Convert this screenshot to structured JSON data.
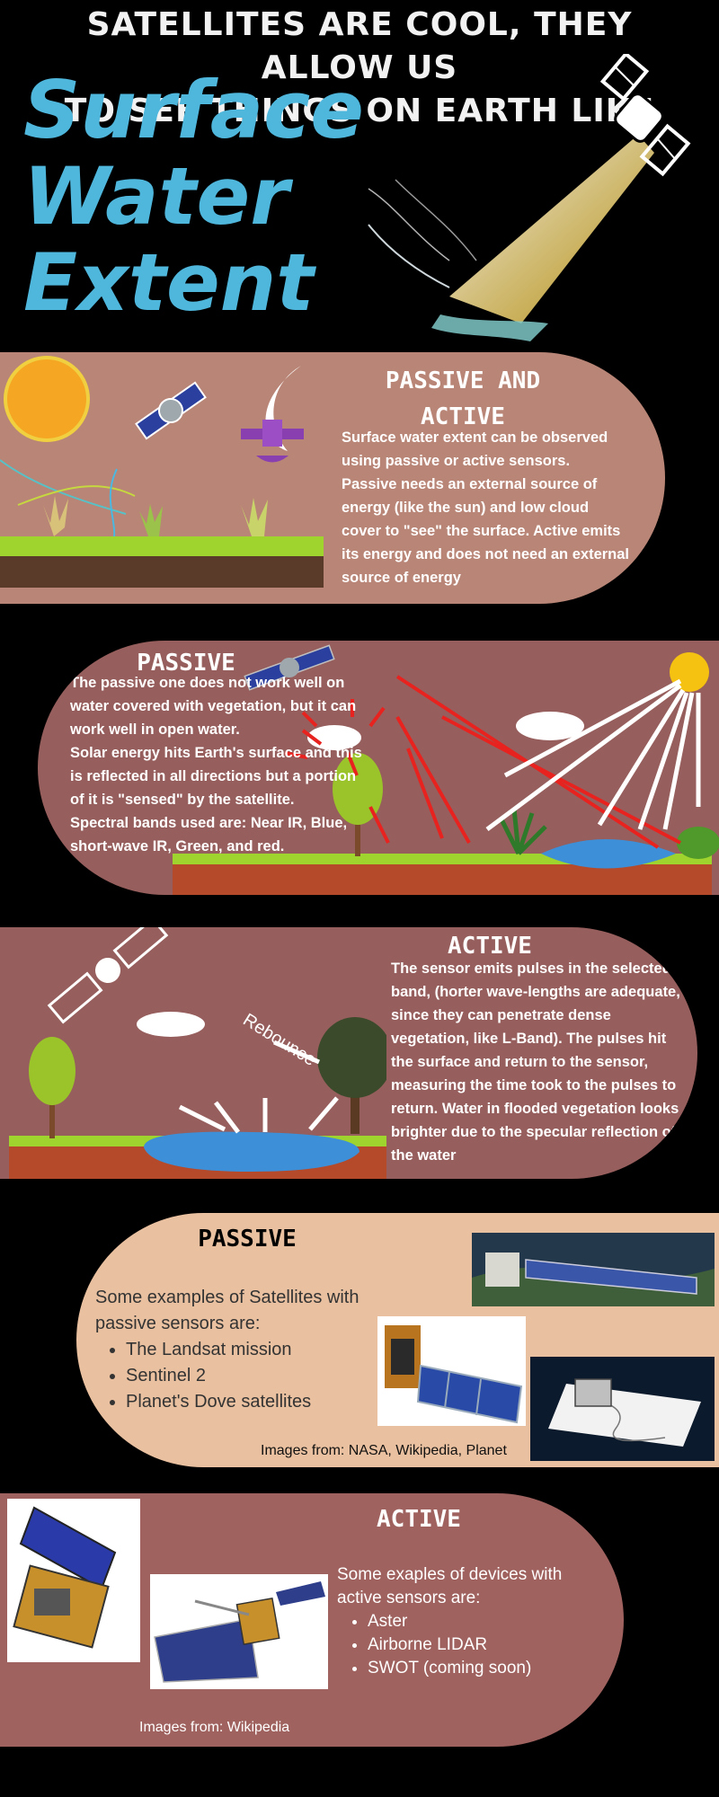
{
  "header": {
    "line1": "SATELLITES ARE COOL, THEY ALLOW US",
    "line2": "TO SEE THINGS ON EARTH LIKE",
    "title_line1": "Surface",
    "title_line2": "Water",
    "title_line3": "Extent"
  },
  "section_intro": {
    "title_line1": "PASSIVE AND",
    "title_line2": "ACTIVE",
    "text": "Surface water extent can be observed using passive or active sensors. Passive needs an external source of energy (like the sun) and low cloud cover to \"see\" the surface. Active emits its energy and does not need an external source of energy"
  },
  "section_passive": {
    "title": "PASSIVE",
    "text_line1": "The passive one does not work well on water covered with vegetation, but it can work well in open water.",
    "text_line2": "Solar energy hits Earth's surface and this is reflected in all directions but a portion of it is \"sensed\" by the satellite.",
    "text_line3": "Spectral bands used are: Near IR, Blue, short-wave IR, Green, and red."
  },
  "section_active": {
    "title": "ACTIVE",
    "rebounce_label": "Rebounce",
    "text": "The sensor emits pulses in the selected band, (horter wave-lengths are adequate, since they can penetrate dense vegetation, like L-Band). The pulses hit the surface and return to the sensor, measuring the time took to the pulses to return. Water in flooded vegetation looks brighter due to the specular reflection of the water"
  },
  "examples_passive": {
    "title": "PASSIVE",
    "intro": "Some examples of Satellites with passive sensors are:",
    "items": [
      "The Landsat mission",
      "Sentinel 2",
      "Planet's Dove satellites"
    ],
    "credit": "Images from: NASA, Wikipedia, Planet"
  },
  "examples_active": {
    "title": "ACTIVE",
    "intro": "Some exaples of devices with active sensors are:",
    "items": [
      "Aster",
      "Airborne LIDAR",
      "SWOT (coming soon)"
    ],
    "credit": "Images from: Wikipedia"
  },
  "colors": {
    "background": "#000000",
    "title_blue": "#4fb6dc",
    "panel_intro": "#b98576",
    "panel_dark": "#965e5c",
    "panel_light": "#eac1a0",
    "arrow_red": "#e8231f"
  }
}
